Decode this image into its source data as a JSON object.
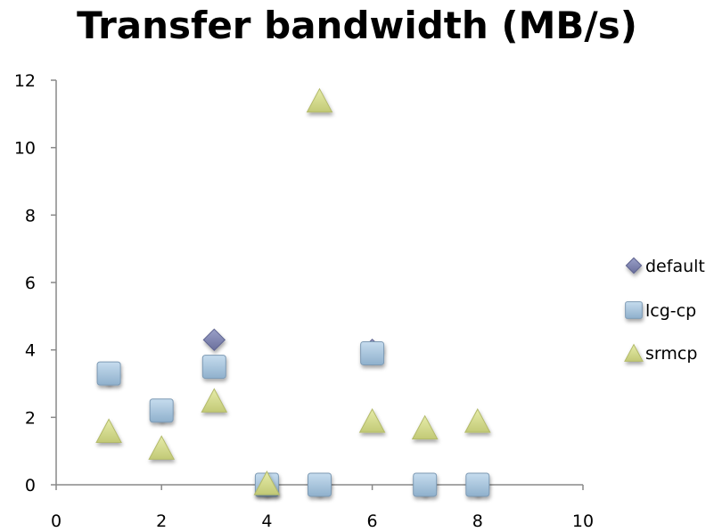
{
  "chart_data": {
    "type": "scatter",
    "title": "Transfer bandwidth (MB/s)",
    "xlabel": "",
    "ylabel": "",
    "xlim": [
      0,
      10
    ],
    "ylim": [
      0,
      12
    ],
    "x_ticks": [
      "0",
      "2",
      "4",
      "6",
      "8",
      "10"
    ],
    "y_ticks": [
      "0",
      "2",
      "4",
      "6",
      "8",
      "10",
      "12"
    ],
    "grid": false,
    "legend_position": "right",
    "series": [
      {
        "name": "default",
        "marker": "diamond",
        "color": "#7f85b0",
        "points": [
          [
            1,
            3.3
          ],
          [
            2,
            2.2
          ],
          [
            3,
            4.3
          ],
          [
            4,
            0
          ],
          [
            5,
            0
          ],
          [
            6,
            4.0
          ],
          [
            7,
            0
          ],
          [
            8,
            0
          ]
        ]
      },
      {
        "name": "lcg-cp",
        "marker": "square",
        "color": "#a9c4dc",
        "points": [
          [
            1,
            3.3
          ],
          [
            2,
            2.2
          ],
          [
            3,
            3.5
          ],
          [
            4,
            0
          ],
          [
            5,
            0
          ],
          [
            6,
            3.9
          ],
          [
            7,
            0
          ],
          [
            8,
            0
          ]
        ]
      },
      {
        "name": "srmcp",
        "marker": "triangle",
        "color": "#d5dc8c",
        "points": [
          [
            1,
            1.6
          ],
          [
            2,
            1.1
          ],
          [
            3,
            2.5
          ],
          [
            4,
            0.05
          ],
          [
            5,
            11.4
          ],
          [
            6,
            1.9
          ],
          [
            7,
            1.7
          ],
          [
            8,
            1.9
          ]
        ]
      }
    ]
  }
}
